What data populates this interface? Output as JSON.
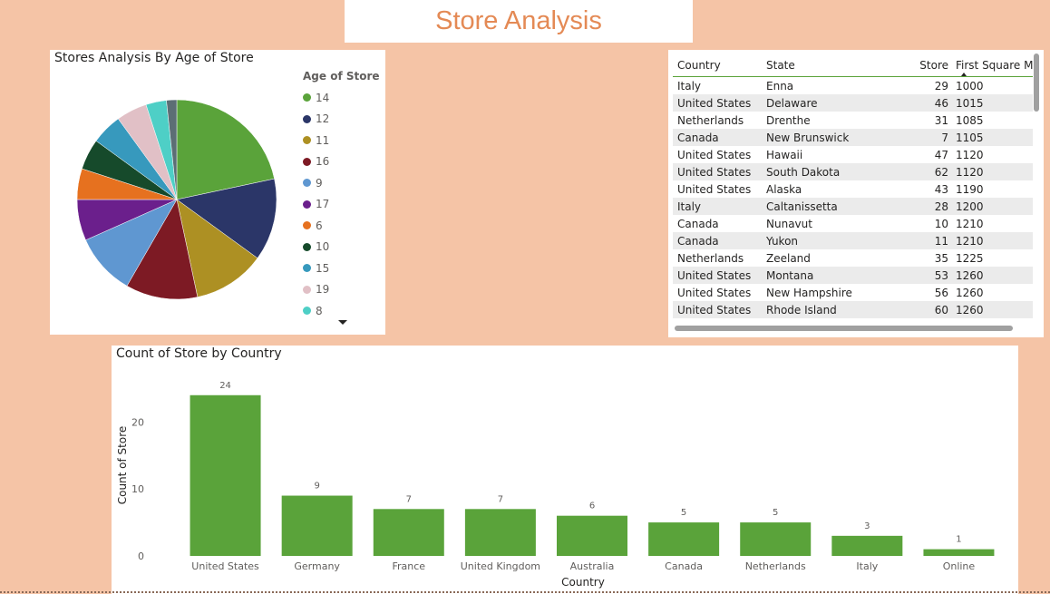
{
  "page": {
    "title": "Store Analysis"
  },
  "pie_visual": {
    "title": "Stores Analysis By Age of Store",
    "legend_title": "Age of Store",
    "legend": [
      {
        "label": "14",
        "color": "#5aa33a"
      },
      {
        "label": "12",
        "color": "#2b3668"
      },
      {
        "label": "11",
        "color": "#ad9023"
      },
      {
        "label": "16",
        "color": "#7d1a24"
      },
      {
        "label": "9",
        "color": "#5f97d1"
      },
      {
        "label": "17",
        "color": "#6b1f8c"
      },
      {
        "label": "6",
        "color": "#e6711f"
      },
      {
        "label": "10",
        "color": "#164a2b"
      },
      {
        "label": "15",
        "color": "#3799bd"
      },
      {
        "label": "19",
        "color": "#e1c0c6"
      },
      {
        "label": "8",
        "color": "#4ecfc6"
      }
    ],
    "more_icon": "chevron-down-icon"
  },
  "table_visual": {
    "columns": [
      "Country",
      "State",
      "Store",
      "First Square Me"
    ],
    "rows": [
      [
        "Italy",
        "Enna",
        "29",
        "1000"
      ],
      [
        "United States",
        "Delaware",
        "46",
        "1015"
      ],
      [
        "Netherlands",
        "Drenthe",
        "31",
        "1085"
      ],
      [
        "Canada",
        "New Brunswick",
        "7",
        "1105"
      ],
      [
        "United States",
        "Hawaii",
        "47",
        "1120"
      ],
      [
        "United States",
        "South Dakota",
        "62",
        "1120"
      ],
      [
        "United States",
        "Alaska",
        "43",
        "1190"
      ],
      [
        "Italy",
        "Caltanissetta",
        "28",
        "1200"
      ],
      [
        "Canada",
        "Nunavut",
        "10",
        "1210"
      ],
      [
        "Canada",
        "Yukon",
        "11",
        "1210"
      ],
      [
        "Netherlands",
        "Zeeland",
        "35",
        "1225"
      ],
      [
        "United States",
        "Montana",
        "53",
        "1260"
      ],
      [
        "United States",
        "New Hampshire",
        "56",
        "1260"
      ],
      [
        "United States",
        "Rhode Island",
        "60",
        "1260"
      ]
    ]
  },
  "chart_data": [
    {
      "type": "pie",
      "title": "Stores Analysis By Age of Store",
      "legend_title": "Age of Store",
      "legend_position": "right",
      "slices": [
        {
          "label": "14",
          "value": 13,
          "color": "#5aa33a"
        },
        {
          "label": "12",
          "value": 8,
          "color": "#2b3668"
        },
        {
          "label": "11",
          "value": 7,
          "color": "#ad9023"
        },
        {
          "label": "16",
          "value": 7,
          "color": "#7d1a24"
        },
        {
          "label": "9",
          "value": 6,
          "color": "#5f97d1"
        },
        {
          "label": "17",
          "value": 4,
          "color": "#6b1f8c"
        },
        {
          "label": "6",
          "value": 3,
          "color": "#e6711f"
        },
        {
          "label": "10",
          "value": 3,
          "color": "#164a2b"
        },
        {
          "label": "15",
          "value": 3,
          "color": "#3799bd"
        },
        {
          "label": "19",
          "value": 3,
          "color": "#e1c0c6"
        },
        {
          "label": "8",
          "value": 2,
          "color": "#4ecfc6"
        },
        {
          "label": "",
          "value": 1,
          "color": "#5c6e75"
        }
      ]
    },
    {
      "type": "bar",
      "title": "Count of Store by Country",
      "xlabel": "Country",
      "ylabel": "Count of Store",
      "categories": [
        "United States",
        "Germany",
        "France",
        "United Kingdom",
        "Australia",
        "Canada",
        "Netherlands",
        "Italy",
        "Online"
      ],
      "values": [
        24,
        9,
        7,
        7,
        6,
        5,
        5,
        3,
        1
      ],
      "ylim": [
        0,
        26
      ],
      "yticks": [
        0,
        10,
        20
      ],
      "color": "#5aa33a",
      "grid": false,
      "data_labels": true
    }
  ]
}
